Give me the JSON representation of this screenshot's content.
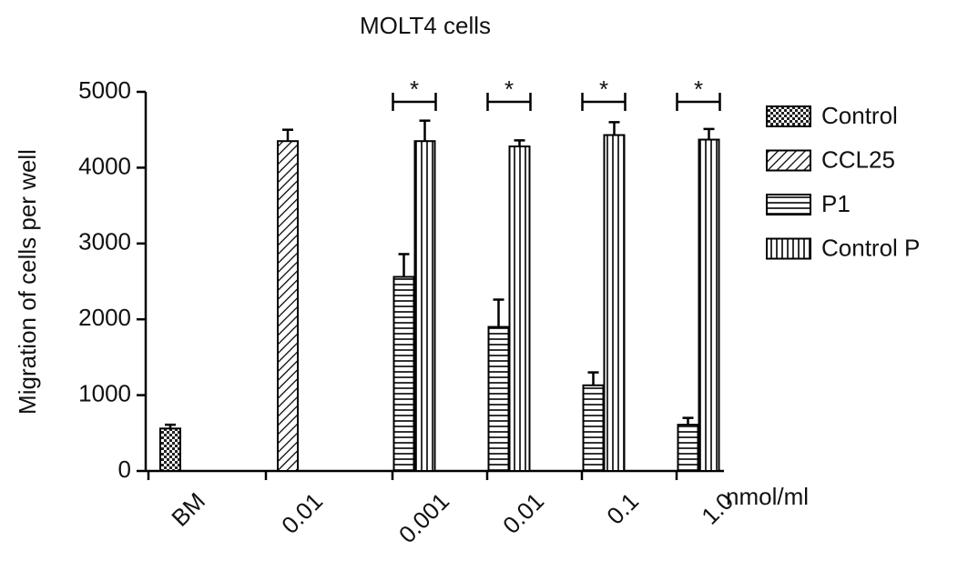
{
  "chart_data": {
    "type": "bar",
    "title": "MOLT4 cells",
    "y_label": "Migration of cells per well",
    "x_unit": "nmol/ml",
    "categories": [
      "BM",
      "0.01",
      "0.001",
      "0.01",
      "0.1",
      "1.0"
    ],
    "series": [
      {
        "name": "Control",
        "color": "#000000",
        "pattern": "checker",
        "values": [
          560,
          null,
          null,
          null,
          null,
          null
        ],
        "errors": [
          50,
          null,
          null,
          null,
          null,
          null
        ]
      },
      {
        "name": "CCL25",
        "color": "#000000",
        "pattern": "diagonal",
        "values": [
          null,
          4350,
          null,
          null,
          null,
          null
        ],
        "errors": [
          null,
          150,
          null,
          null,
          null,
          null
        ]
      },
      {
        "name": "P1",
        "color": "#000000",
        "pattern": "horizontal",
        "values": [
          null,
          null,
          2560,
          1900,
          1130,
          610
        ],
        "errors": [
          null,
          null,
          300,
          360,
          170,
          90
        ]
      },
      {
        "name": "Control P",
        "color": "#000000",
        "pattern": "vertical",
        "values": [
          null,
          null,
          4350,
          4280,
          4430,
          4370
        ],
        "errors": [
          null,
          null,
          270,
          80,
          170,
          140
        ]
      }
    ],
    "annotations": [
      null,
      null,
      "*",
      "*",
      "*",
      "*"
    ],
    "ylim": [
      0,
      5000
    ],
    "yticks": [
      0,
      1000,
      2000,
      3000,
      4000,
      5000
    ]
  }
}
